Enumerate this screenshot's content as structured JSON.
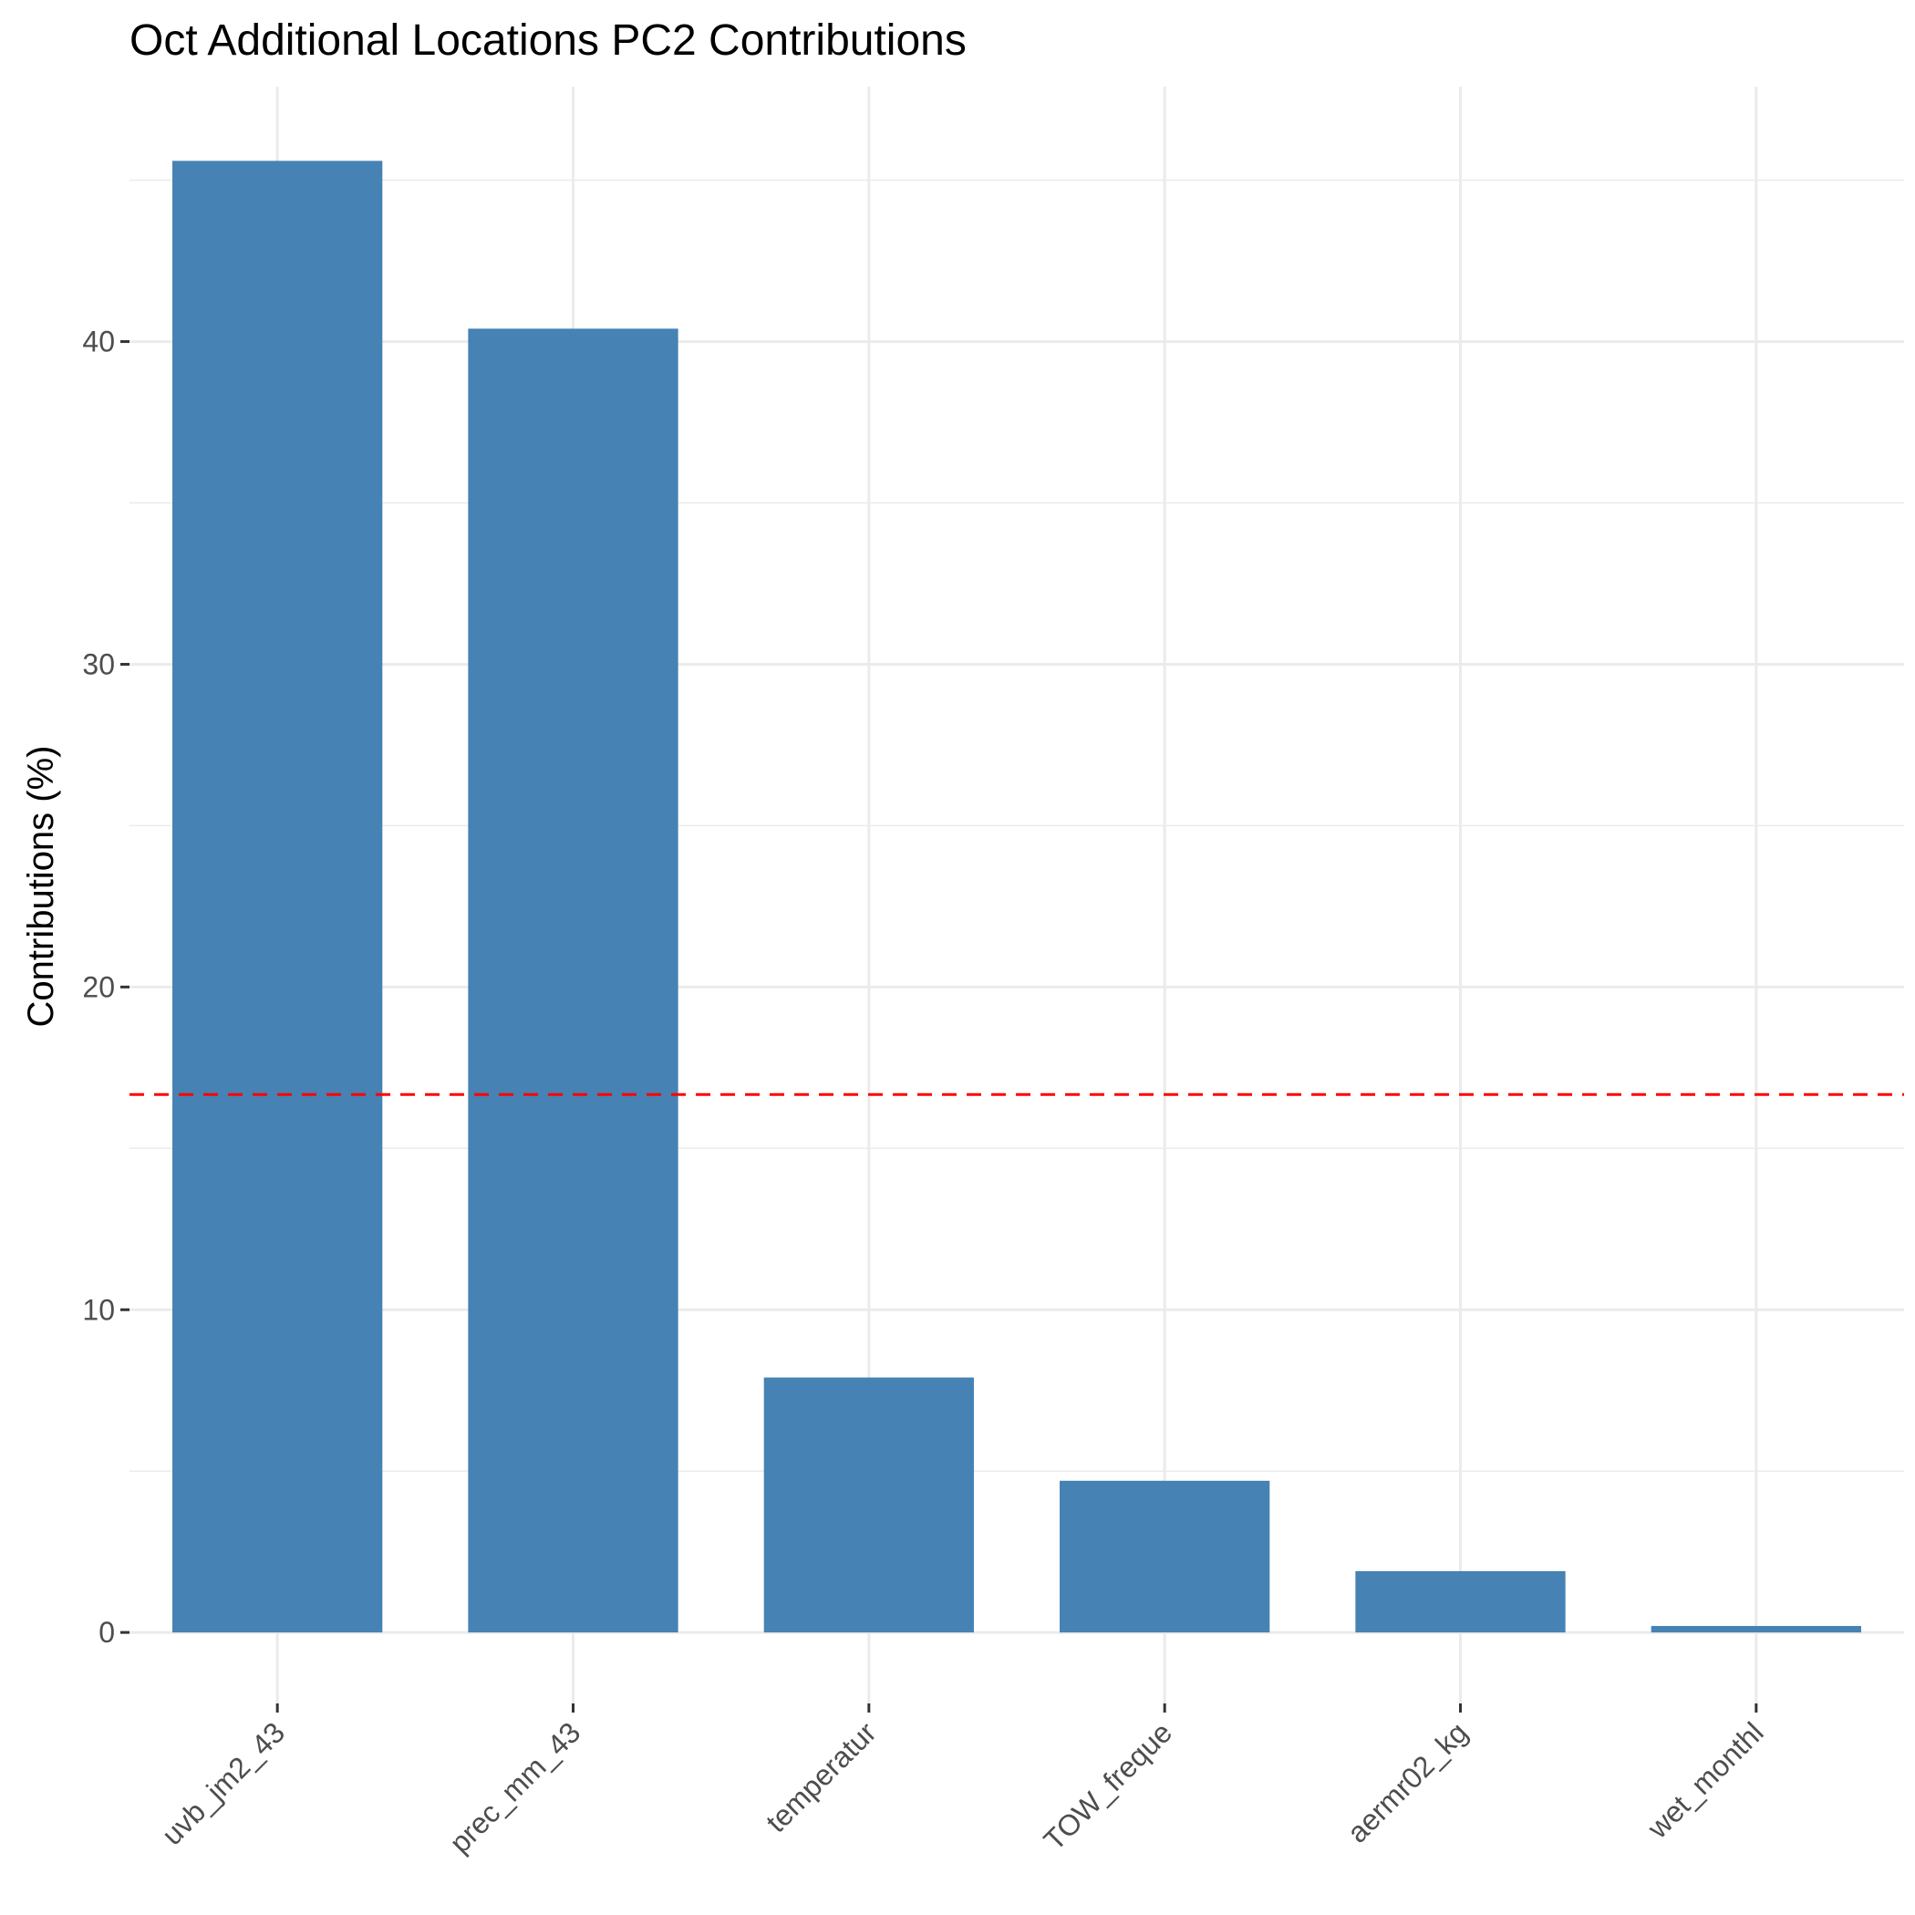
{
  "chart_data": {
    "type": "bar",
    "title": "Oct Additional Locations PC2 Contributions",
    "xlabel": "",
    "ylabel": "Contributions (%)",
    "categories": [
      "uvb_jm2_43",
      "prec_mm_43",
      "temperatur",
      "TOW_freque",
      "aermr02_kg",
      "wet_monthl"
    ],
    "values": [
      45.6,
      40.4,
      7.9,
      4.7,
      1.9,
      0.2
    ],
    "ylim": [
      -2.2,
      47.9
    ],
    "yticks": [
      0,
      10,
      20,
      30,
      40
    ],
    "ytick_labels": [
      "0",
      "10",
      "20",
      "30",
      "40"
    ],
    "reference_line": {
      "value": 16.67,
      "style": "dashed",
      "color": "#ff0000"
    },
    "bar_color": "#4682b4",
    "grid": true,
    "legend": "none"
  }
}
